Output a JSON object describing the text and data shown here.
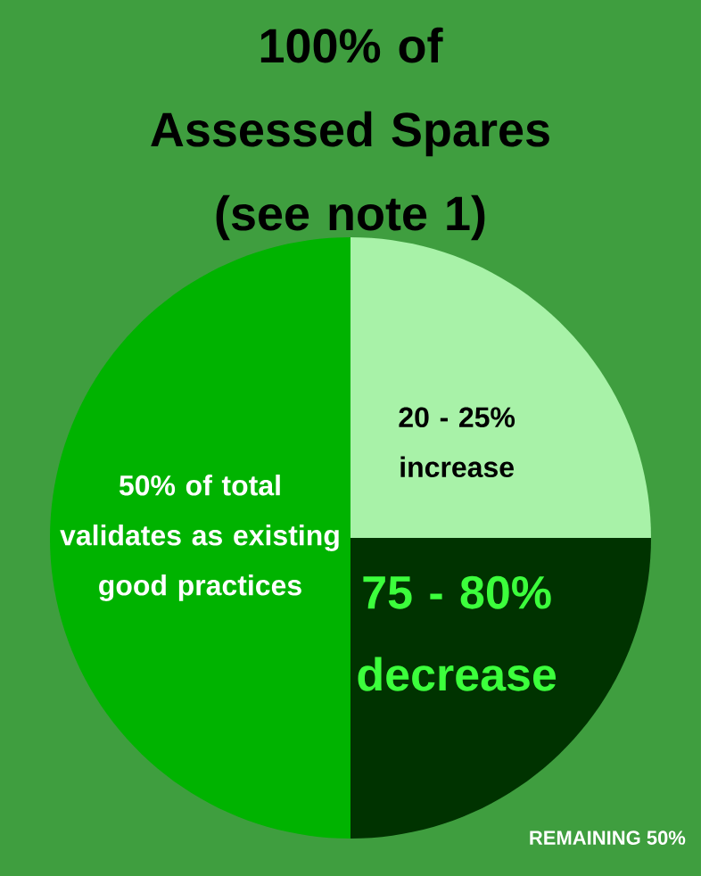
{
  "chart_data": {
    "type": "pie",
    "title": "100% of Assessed Spares (see note 1)",
    "categories": [
      "50% of total validates as existing good practices",
      "20 - 25% increase",
      "75 - 80% decrease"
    ],
    "values": [
      50,
      25,
      25
    ],
    "colors": [
      "#00b300",
      "#a8f2a8",
      "#003300"
    ],
    "annotations": [
      "REMAINING 50%"
    ]
  }
}
